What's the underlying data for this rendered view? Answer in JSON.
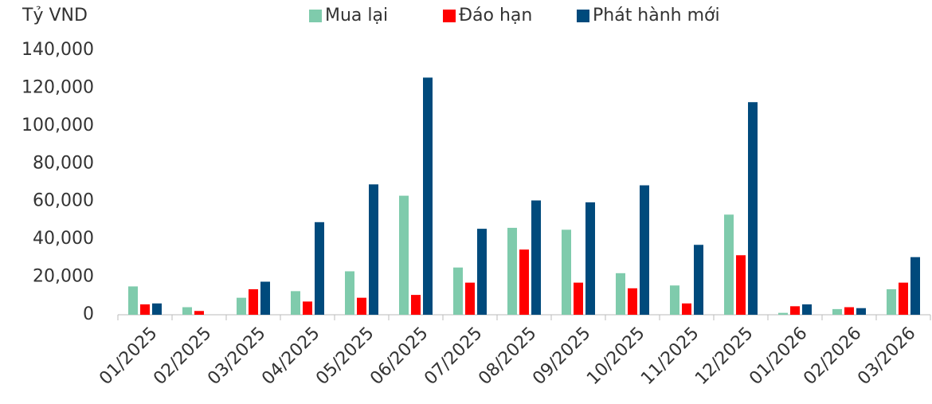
{
  "chart_data": {
    "type": "bar",
    "y_label": "Tỷ VND",
    "categories": [
      "01/2025",
      "02/2025",
      "03/2025",
      "04/2025",
      "05/2025",
      "06/2025",
      "07/2025",
      "08/2025",
      "09/2025",
      "10/2025",
      "11/2025",
      "12/2025",
      "01/2026",
      "02/2026",
      "03/2026"
    ],
    "series": [
      {
        "name": "Mua lại",
        "color": "#7fcbac",
        "values": [
          15000,
          4000,
          9000,
          12500,
          23000,
          63000,
          25000,
          46000,
          45000,
          22000,
          15500,
          53000,
          1000,
          3000,
          13500
        ]
      },
      {
        "name": "Đáo hạn",
        "color": "#ff0000",
        "values": [
          5500,
          2000,
          13500,
          7000,
          9000,
          10500,
          17000,
          34500,
          17000,
          14000,
          6000,
          31500,
          4500,
          4000,
          17000
        ]
      },
      {
        "name": "Phát hành mới",
        "color": "#004a7c",
        "values": [
          6000,
          0,
          17500,
          49000,
          69000,
          125500,
          45500,
          60500,
          59500,
          68500,
          37000,
          112500,
          5500,
          3500,
          30500
        ]
      }
    ],
    "ylim": [
      0,
      140000
    ],
    "yticks": [
      0,
      {
        "value": 20000,
        "label": "20,000"
      },
      {
        "value": 40000,
        "label": "40,000"
      },
      {
        "value": 60000,
        "label": "60,000"
      },
      {
        "value": 80000,
        "label": "80,000"
      },
      {
        "value": 100000,
        "label": "100,000"
      },
      {
        "value": 120000,
        "label": "120,000"
      },
      {
        "value": 140000,
        "label": "140,000"
      }
    ],
    "legend": "top"
  }
}
